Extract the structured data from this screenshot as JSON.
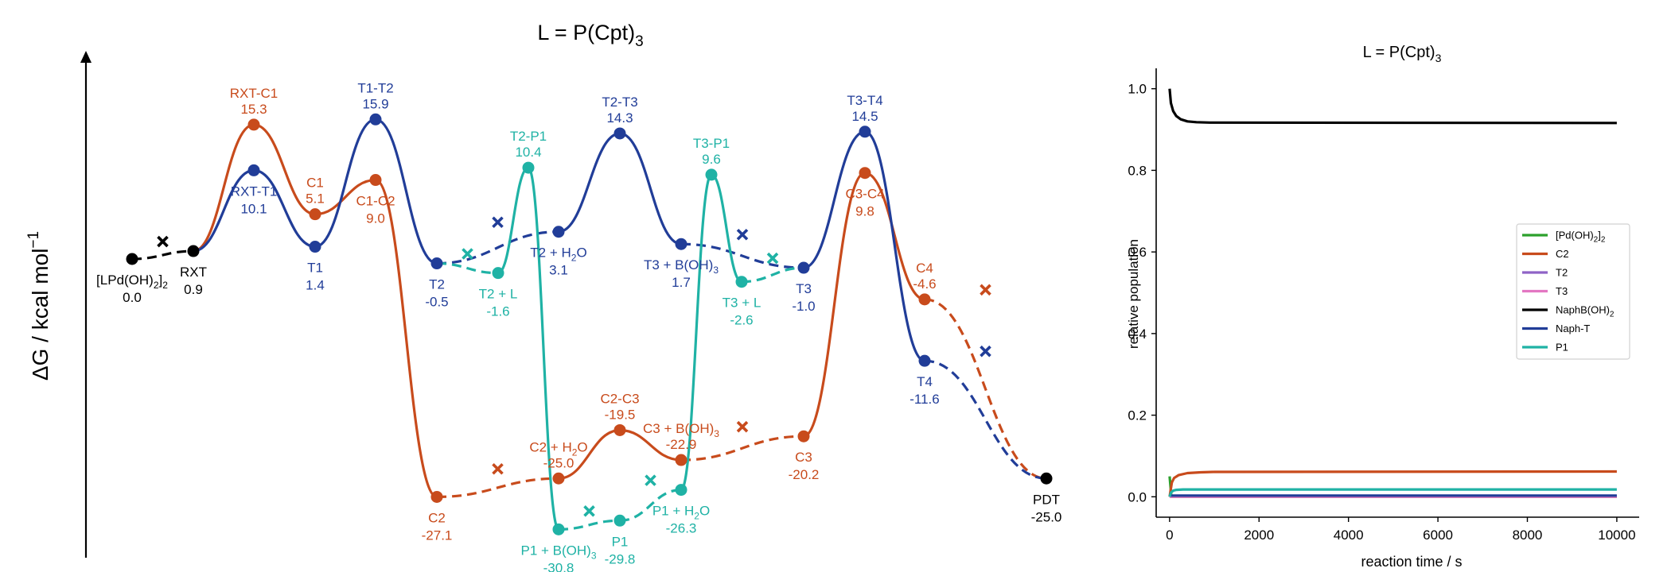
{
  "colors": {
    "black": "#000000",
    "blue": "#213d98",
    "orange": "#c84b1c",
    "teal": "#1fb2a5",
    "green": "#2ca02c",
    "purple": "#8f63c6",
    "pink": "#e377c2"
  },
  "chart_data": [
    {
      "type": "line",
      "subtype": "reaction energy profile",
      "title_main": "L = P(Cpt)",
      "title_sub": "3",
      "ylabel_main": "ΔG / kcal mol",
      "ylabel_sup": "−1",
      "states": [
        {
          "id": "LPd",
          "label_parts": [
            [
              "[LPd(OH)",
              false
            ],
            [
              "2",
              true
            ],
            [
              "]",
              false
            ],
            [
              "2",
              true
            ]
          ],
          "value": 0.0,
          "value_text": "0.0",
          "color": "black",
          "label_pos": "below"
        },
        {
          "id": "RXT",
          "label_parts": [
            [
              "RXT",
              false
            ]
          ],
          "value": 0.9,
          "value_text": "0.9",
          "color": "black",
          "label_pos": "below"
        },
        {
          "id": "RXT-C1",
          "label_parts": [
            [
              "RXT-C1",
              false
            ]
          ],
          "value": 15.3,
          "value_text": "15.3",
          "color": "orange",
          "label_pos": "above"
        },
        {
          "id": "RXT-T1",
          "label_parts": [
            [
              "RXT-T1",
              false
            ]
          ],
          "value": 10.1,
          "value_text": "10.1",
          "color": "blue",
          "label_pos": "below"
        },
        {
          "id": "C1",
          "label_parts": [
            [
              "C1",
              false
            ]
          ],
          "value": 5.1,
          "value_text": "5.1",
          "color": "orange",
          "label_pos": "above"
        },
        {
          "id": "T1",
          "label_parts": [
            [
              "T1",
              false
            ]
          ],
          "value": 1.4,
          "value_text": "1.4",
          "color": "blue",
          "label_pos": "below"
        },
        {
          "id": "T1-T2",
          "label_parts": [
            [
              "T1-T2",
              false
            ]
          ],
          "value": 15.9,
          "value_text": "15.9",
          "color": "blue",
          "label_pos": "above"
        },
        {
          "id": "C1-C2",
          "label_parts": [
            [
              "C1-C2",
              false
            ]
          ],
          "value": 9.0,
          "value_text": "9.0",
          "color": "orange",
          "label_pos": "below"
        },
        {
          "id": "T2",
          "label_parts": [
            [
              "T2",
              false
            ]
          ],
          "value": -0.5,
          "value_text": "-0.5",
          "color": "blue",
          "label_pos": "below"
        },
        {
          "id": "T2+L",
          "label_parts": [
            [
              "T2 + L",
              false
            ]
          ],
          "value": -1.6,
          "value_text": "-1.6",
          "color": "teal",
          "label_pos": "below"
        },
        {
          "id": "T2-P1",
          "label_parts": [
            [
              "T2-P1",
              false
            ]
          ],
          "value": 10.4,
          "value_text": "10.4",
          "color": "teal",
          "label_pos": "above"
        },
        {
          "id": "T2+H2O",
          "label_parts": [
            [
              "T2 + H",
              false
            ],
            [
              "2",
              true
            ],
            [
              "O",
              false
            ]
          ],
          "value": 3.1,
          "value_text": "3.1",
          "color": "blue",
          "label_pos": "below"
        },
        {
          "id": "T2-T3",
          "label_parts": [
            [
              "T2-T3",
              false
            ]
          ],
          "value": 14.3,
          "value_text": "14.3",
          "color": "blue",
          "label_pos": "above"
        },
        {
          "id": "T3+B",
          "label_parts": [
            [
              "T3 + B(OH)",
              false
            ],
            [
              "3",
              true
            ]
          ],
          "value": 1.7,
          "value_text": "1.7",
          "color": "blue",
          "label_pos": "below"
        },
        {
          "id": "T3-P1",
          "label_parts": [
            [
              "T3-P1",
              false
            ]
          ],
          "value": 9.6,
          "value_text": "9.6",
          "color": "teal",
          "label_pos": "above"
        },
        {
          "id": "T3+L",
          "label_parts": [
            [
              "T3 + L",
              false
            ]
          ],
          "value": -2.6,
          "value_text": "-2.6",
          "color": "teal",
          "label_pos": "below"
        },
        {
          "id": "T3",
          "label_parts": [
            [
              "T3",
              false
            ]
          ],
          "value": -1.0,
          "value_text": "-1.0",
          "color": "blue",
          "label_pos": "below"
        },
        {
          "id": "T3-T4",
          "label_parts": [
            [
              "T3-T4",
              false
            ]
          ],
          "value": 14.5,
          "value_text": "14.5",
          "color": "blue",
          "label_pos": "above"
        },
        {
          "id": "C3-C4",
          "label_parts": [
            [
              "C3-C4",
              false
            ]
          ],
          "value": 9.8,
          "value_text": "9.8",
          "color": "orange",
          "label_pos": "below"
        },
        {
          "id": "C4",
          "label_parts": [
            [
              "C4",
              false
            ]
          ],
          "value": -4.6,
          "value_text": "-4.6",
          "color": "orange",
          "label_pos": "above"
        },
        {
          "id": "T4",
          "label_parts": [
            [
              "T4",
              false
            ]
          ],
          "value": -11.6,
          "value_text": "-11.6",
          "color": "blue",
          "label_pos": "below"
        },
        {
          "id": "C2",
          "label_parts": [
            [
              "C2",
              false
            ]
          ],
          "value": -27.1,
          "value_text": "-27.1",
          "color": "orange",
          "label_pos": "below"
        },
        {
          "id": "C2+H2O",
          "label_parts": [
            [
              "C2 + H",
              false
            ],
            [
              "2",
              true
            ],
            [
              "O",
              false
            ]
          ],
          "value": -25.0,
          "value_text": "-25.0",
          "color": "orange",
          "label_pos": "above"
        },
        {
          "id": "C2-C3",
          "label_parts": [
            [
              "C2-C3",
              false
            ]
          ],
          "value": -19.5,
          "value_text": "-19.5",
          "color": "orange",
          "label_pos": "above"
        },
        {
          "id": "C3+B",
          "label_parts": [
            [
              "C3 + B(OH)",
              false
            ],
            [
              "3",
              true
            ]
          ],
          "value": -22.9,
          "value_text": "-22.9",
          "color": "orange",
          "label_pos": "above"
        },
        {
          "id": "C3",
          "label_parts": [
            [
              "C3",
              false
            ]
          ],
          "value": -20.2,
          "value_text": "-20.2",
          "color": "orange",
          "label_pos": "below"
        },
        {
          "id": "P1+B",
          "label_parts": [
            [
              "P1 + B(OH)",
              false
            ],
            [
              "3",
              true
            ]
          ],
          "value": -30.8,
          "value_text": "-30.8",
          "color": "teal",
          "label_pos": "below"
        },
        {
          "id": "P1",
          "label_parts": [
            [
              "P1",
              false
            ]
          ],
          "value": -29.8,
          "value_text": "-29.8",
          "color": "teal",
          "label_pos": "below"
        },
        {
          "id": "P1+H2O",
          "label_parts": [
            [
              "P1 + H",
              false
            ],
            [
              "2",
              true
            ],
            [
              "O",
              false
            ]
          ],
          "value": -26.3,
          "value_text": "-26.3",
          "color": "teal",
          "label_pos": "below"
        },
        {
          "id": "PDT",
          "label_parts": [
            [
              "PDT",
              false
            ]
          ],
          "value": -25.0,
          "value_text": "-25.0",
          "color": "black",
          "label_pos": "below"
        }
      ],
      "connections": [
        {
          "from": "LPd",
          "to": "RXT",
          "color": "black",
          "style": "dashed"
        },
        {
          "from": "RXT",
          "to": "RXT-C1",
          "color": "orange",
          "style": "solid"
        },
        {
          "from": "RXT-C1",
          "to": "C1",
          "color": "orange",
          "style": "solid"
        },
        {
          "from": "C1",
          "to": "C1-C2",
          "color": "orange",
          "style": "solid"
        },
        {
          "from": "C1-C2",
          "to": "C2",
          "color": "orange",
          "style": "solid"
        },
        {
          "from": "C2",
          "to": "C2+H2O",
          "color": "orange",
          "style": "dashed"
        },
        {
          "from": "C2+H2O",
          "to": "C2-C3",
          "color": "orange",
          "style": "solid"
        },
        {
          "from": "C2-C3",
          "to": "C3+B",
          "color": "orange",
          "style": "solid"
        },
        {
          "from": "C3+B",
          "to": "C3",
          "color": "orange",
          "style": "dashed"
        },
        {
          "from": "C3",
          "to": "C3-C4",
          "color": "orange",
          "style": "solid"
        },
        {
          "from": "C3-C4",
          "to": "C4",
          "color": "orange",
          "style": "solid"
        },
        {
          "from": "C4",
          "to": "PDT",
          "color": "orange",
          "style": "dashed"
        },
        {
          "from": "RXT",
          "to": "RXT-T1",
          "color": "blue",
          "style": "solid"
        },
        {
          "from": "RXT-T1",
          "to": "T1",
          "color": "blue",
          "style": "solid"
        },
        {
          "from": "T1",
          "to": "T1-T2",
          "color": "blue",
          "style": "solid"
        },
        {
          "from": "T1-T2",
          "to": "T2",
          "color": "blue",
          "style": "solid"
        },
        {
          "from": "T2",
          "to": "T2+H2O",
          "color": "blue",
          "style": "dashed"
        },
        {
          "from": "T2+H2O",
          "to": "T2-T3",
          "color": "blue",
          "style": "solid"
        },
        {
          "from": "T2-T3",
          "to": "T3+B",
          "color": "blue",
          "style": "solid"
        },
        {
          "from": "T3+B",
          "to": "T3",
          "color": "blue",
          "style": "dashed"
        },
        {
          "from": "T3",
          "to": "T3-T4",
          "color": "blue",
          "style": "solid"
        },
        {
          "from": "T3-T4",
          "to": "T4",
          "color": "blue",
          "style": "solid"
        },
        {
          "from": "T4",
          "to": "PDT",
          "color": "blue",
          "style": "dashed"
        },
        {
          "from": "T2",
          "to": "T2+L",
          "color": "teal",
          "style": "dashed"
        },
        {
          "from": "T2+L",
          "to": "T2-P1",
          "color": "teal",
          "style": "solid"
        },
        {
          "from": "T2-P1",
          "to": "P1+B",
          "color": "teal",
          "style": "solid"
        },
        {
          "from": "P1+B",
          "to": "P1",
          "color": "teal",
          "style": "dashed"
        },
        {
          "from": "P1",
          "to": "P1+H2O",
          "color": "teal",
          "style": "dashed"
        },
        {
          "from": "P1+H2O",
          "to": "T3-P1",
          "color": "teal",
          "style": "solid"
        },
        {
          "from": "T3-P1",
          "to": "T3+L",
          "color": "teal",
          "style": "solid"
        },
        {
          "from": "T3+L",
          "to": "T3",
          "color": "teal",
          "style": "dashed"
        }
      ]
    },
    {
      "type": "line",
      "title_main": "L = P(Cpt)",
      "title_sub": "3",
      "xlabel": "reaction time / s",
      "ylabel": "relative population",
      "xlim": [
        -300,
        10500
      ],
      "ylim": [
        -0.05,
        1.05
      ],
      "xticks": [
        0,
        2000,
        4000,
        6000,
        8000,
        10000
      ],
      "yticks": [
        0.0,
        0.2,
        0.4,
        0.6,
        0.8,
        1.0
      ],
      "xtick_labels": [
        "0",
        "2000",
        "4000",
        "6000",
        "8000",
        "10000"
      ],
      "ytick_labels": [
        "0.0",
        "0.2",
        "0.4",
        "0.6",
        "0.8",
        "1.0"
      ],
      "legend_position": "center-right",
      "series": [
        {
          "name_parts": [
            [
              "[Pd(OH)",
              false
            ],
            [
              "2",
              true
            ],
            [
              "]",
              false
            ],
            [
              "2",
              true
            ]
          ],
          "color": "green",
          "x": [
            0,
            40,
            10000
          ],
          "y": [
            0.05,
            0.0,
            0.0
          ]
        },
        {
          "name_parts": [
            [
              "C2",
              false
            ]
          ],
          "color": "orange",
          "x": [
            0,
            50,
            100,
            200,
            400,
            700,
            1000,
            10000
          ],
          "y": [
            0.0,
            0.035,
            0.046,
            0.053,
            0.058,
            0.06,
            0.061,
            0.062
          ]
        },
        {
          "name_parts": [
            [
              "T2",
              false
            ]
          ],
          "color": "purple",
          "x": [
            0,
            10000
          ],
          "y": [
            0.001,
            0.001
          ]
        },
        {
          "name_parts": [
            [
              "T3",
              false
            ]
          ],
          "color": "pink",
          "x": [
            0,
            10000
          ],
          "y": [
            0.0,
            0.0
          ]
        },
        {
          "name_parts": [
            [
              "NaphB(OH)",
              false
            ],
            [
              "2",
              true
            ]
          ],
          "color": "black",
          "x": [
            0,
            30,
            80,
            150,
            250,
            400,
            600,
            900,
            10000
          ],
          "y": [
            1.0,
            0.965,
            0.945,
            0.933,
            0.925,
            0.92,
            0.918,
            0.917,
            0.916
          ]
        },
        {
          "name_parts": [
            [
              "Naph-T",
              false
            ]
          ],
          "color": "blue",
          "x": [
            0,
            10000
          ],
          "y": [
            0.003,
            0.003
          ]
        },
        {
          "name_parts": [
            [
              "P1",
              false
            ]
          ],
          "color": "teal",
          "x": [
            0,
            30,
            80,
            150,
            300,
            10000
          ],
          "y": [
            0.0,
            0.01,
            0.015,
            0.017,
            0.018,
            0.018
          ]
        }
      ]
    }
  ]
}
